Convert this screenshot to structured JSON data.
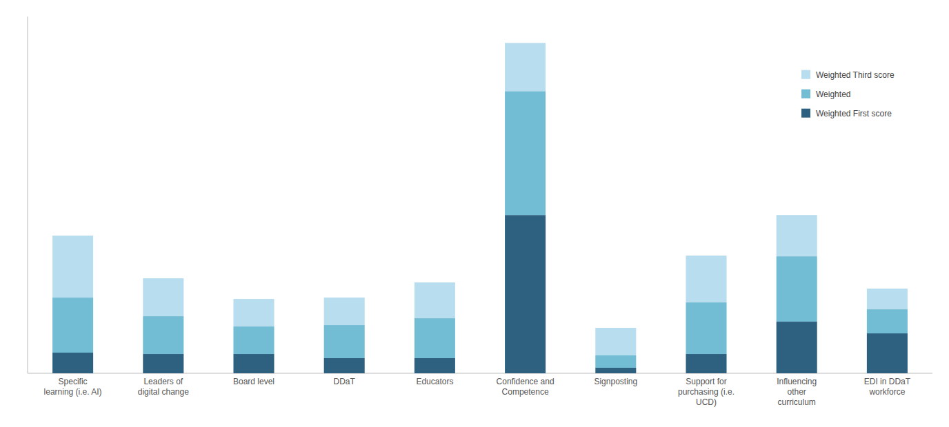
{
  "chart_data": {
    "type": "bar",
    "stacked": true,
    "categories": [
      "Specific\nlearning (i.e. AI)",
      "Leaders of\ndigital change",
      "Board level",
      "DDaT",
      "Educators",
      "Confidence and\nCompetence",
      "Signposting",
      "Support for\npurchasing (i.e.\nUCD)",
      "Influencing\nother\ncurriculum",
      "EDI in DDaT\nworkforce"
    ],
    "series": [
      {
        "name": "Weighted First score",
        "color": "#2e6080",
        "values": [
          30,
          28,
          28,
          22,
          22,
          230,
          8,
          28,
          75,
          58
        ]
      },
      {
        "name": "Weighted",
        "color": "#72bcd4",
        "values": [
          80,
          55,
          40,
          48,
          58,
          180,
          18,
          75,
          95,
          35
        ]
      },
      {
        "name": "Weighted Third score",
        "color": "#b8ddef",
        "values": [
          90,
          55,
          40,
          40,
          52,
          70,
          40,
          68,
          60,
          30
        ]
      }
    ],
    "ylim": [
      0,
      518.4
    ],
    "grid": false,
    "tick_labels": "x",
    "legend": "upper right"
  }
}
